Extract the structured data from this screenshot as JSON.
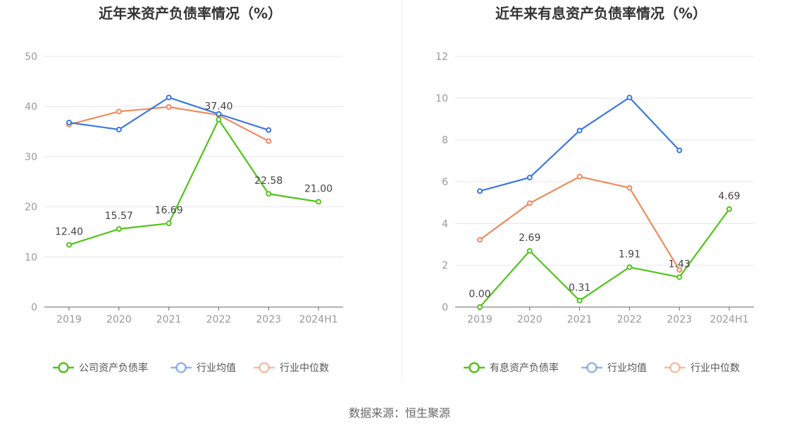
{
  "source": "数据来源：恒生聚源",
  "chart_data": [
    {
      "type": "line",
      "title": "近年来资产负债率情况（%）",
      "categories": [
        "2019",
        "2020",
        "2021",
        "2022",
        "2023",
        "2024H1"
      ],
      "ylim": [
        0,
        50
      ],
      "yticks": [
        0,
        10,
        20,
        30,
        40,
        50
      ],
      "grid": true,
      "legend_position": "bottom",
      "series": [
        {
          "name": "公司资产负债率",
          "color": "#52c41a",
          "values": [
            12.4,
            15.57,
            16.69,
            37.4,
            22.58,
            21.0
          ],
          "labels": [
            "12.40",
            "15.57",
            "16.69",
            "37.40",
            "22.58",
            "21.00"
          ]
        },
        {
          "name": "行业均值",
          "color": "#3a78e0",
          "values": [
            36.8,
            35.4,
            41.8,
            38.5,
            35.3,
            null
          ]
        },
        {
          "name": "行业中位数",
          "color": "#f08a5d",
          "values": [
            36.4,
            39.0,
            39.9,
            38.3,
            33.1,
            null
          ]
        }
      ]
    },
    {
      "type": "line",
      "title": "近年来有息资产负债率情况（%）",
      "categories": [
        "2019",
        "2020",
        "2021",
        "2022",
        "2023",
        "2024H1"
      ],
      "ylim": [
        0,
        12
      ],
      "yticks": [
        0,
        2,
        4,
        6,
        8,
        10,
        12
      ],
      "grid": true,
      "legend_position": "bottom",
      "series": [
        {
          "name": "有息资产负债率",
          "color": "#52c41a",
          "values": [
            0.0,
            2.69,
            0.31,
            1.91,
            1.43,
            4.69
          ],
          "labels": [
            "0.00",
            "2.69",
            "0.31",
            "1.91",
            "1.43",
            "4.69"
          ]
        },
        {
          "name": "行业均值",
          "color": "#3a78e0",
          "values": [
            5.55,
            6.2,
            8.45,
            10.03,
            7.5,
            null
          ]
        },
        {
          "name": "行业中位数",
          "color": "#f08a5d",
          "values": [
            3.22,
            4.97,
            6.24,
            5.71,
            1.78,
            null
          ]
        }
      ]
    }
  ]
}
